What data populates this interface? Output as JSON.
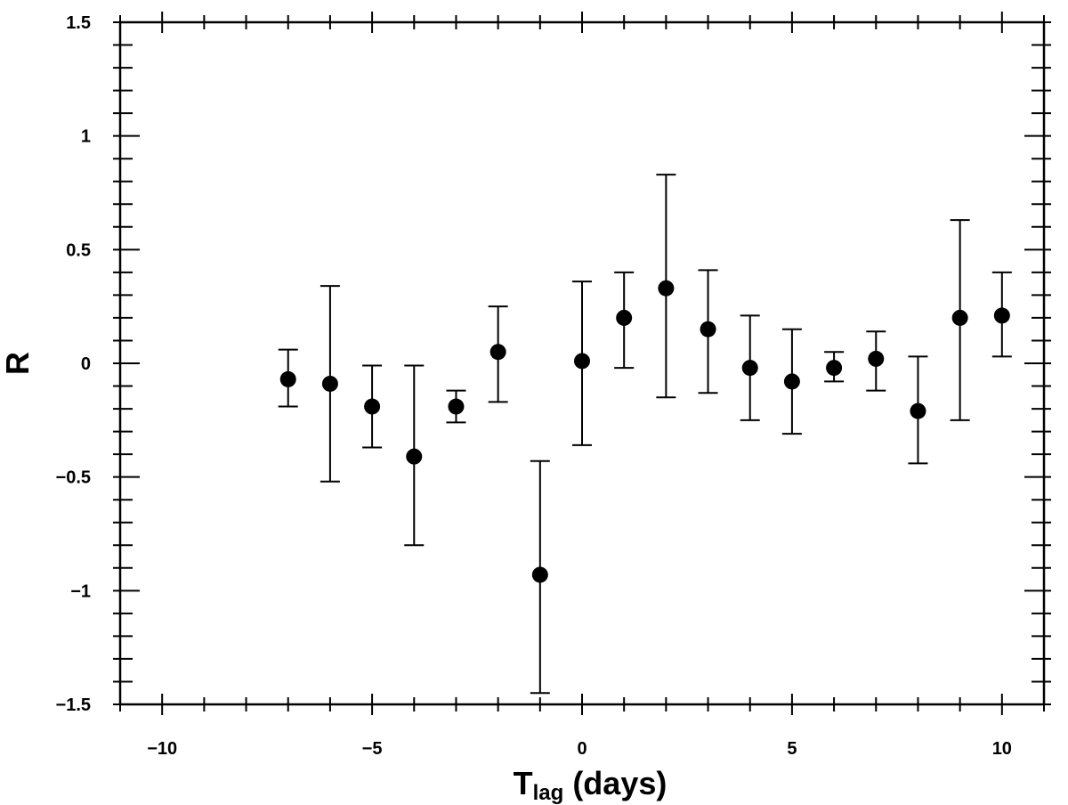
{
  "chart_data": {
    "type": "scatter",
    "title": "",
    "xlabel_main": "T",
    "xlabel_sub": "lag",
    "xlabel_rest": " (days)",
    "ylabel": "R",
    "xlim": [
      -11,
      11
    ],
    "ylim": [
      -1.5,
      1.5
    ],
    "x_ticks": [
      -10,
      -5,
      0,
      5,
      10
    ],
    "x_tick_labels": [
      "−10",
      "−5",
      "0",
      "5",
      "10"
    ],
    "y_ticks": [
      1.5,
      1,
      0.5,
      0,
      -0.5,
      -1,
      -1.5
    ],
    "y_tick_labels": [
      "1.5",
      "1",
      "0.5",
      "0",
      "−0.5",
      "−1",
      "−1.5"
    ],
    "grid": false,
    "series": [
      {
        "marker": "filled-circle",
        "color": "#000000",
        "points": [
          {
            "x": -7,
            "y": -0.07,
            "lo": -0.19,
            "hi": 0.06
          },
          {
            "x": -6,
            "y": -0.09,
            "lo": -0.52,
            "hi": 0.34
          },
          {
            "x": -5,
            "y": -0.19,
            "lo": -0.37,
            "hi": -0.01
          },
          {
            "x": -4,
            "y": -0.41,
            "lo": -0.8,
            "hi": -0.01
          },
          {
            "x": -3,
            "y": -0.19,
            "lo": -0.26,
            "hi": -0.12
          },
          {
            "x": -2,
            "y": 0.05,
            "lo": -0.17,
            "hi": 0.25
          },
          {
            "x": -1,
            "y": -0.93,
            "lo": -1.45,
            "hi": -0.43
          },
          {
            "x": 0,
            "y": 0.01,
            "lo": -0.36,
            "hi": 0.36
          },
          {
            "x": 1,
            "y": 0.2,
            "lo": -0.02,
            "hi": 0.4
          },
          {
            "x": 2,
            "y": 0.33,
            "lo": -0.15,
            "hi": 0.83
          },
          {
            "x": 3,
            "y": 0.15,
            "lo": -0.13,
            "hi": 0.41
          },
          {
            "x": 4,
            "y": -0.02,
            "lo": -0.25,
            "hi": 0.21
          },
          {
            "x": 5,
            "y": -0.08,
            "lo": -0.31,
            "hi": 0.15
          },
          {
            "x": 6,
            "y": -0.02,
            "lo": -0.08,
            "hi": 0.05
          },
          {
            "x": 7,
            "y": 0.02,
            "lo": -0.12,
            "hi": 0.14
          },
          {
            "x": 8,
            "y": -0.21,
            "lo": -0.44,
            "hi": 0.03
          },
          {
            "x": 9,
            "y": 0.2,
            "lo": -0.25,
            "hi": 0.63
          },
          {
            "x": 10,
            "y": 0.21,
            "lo": 0.03,
            "hi": 0.4
          }
        ]
      }
    ]
  }
}
